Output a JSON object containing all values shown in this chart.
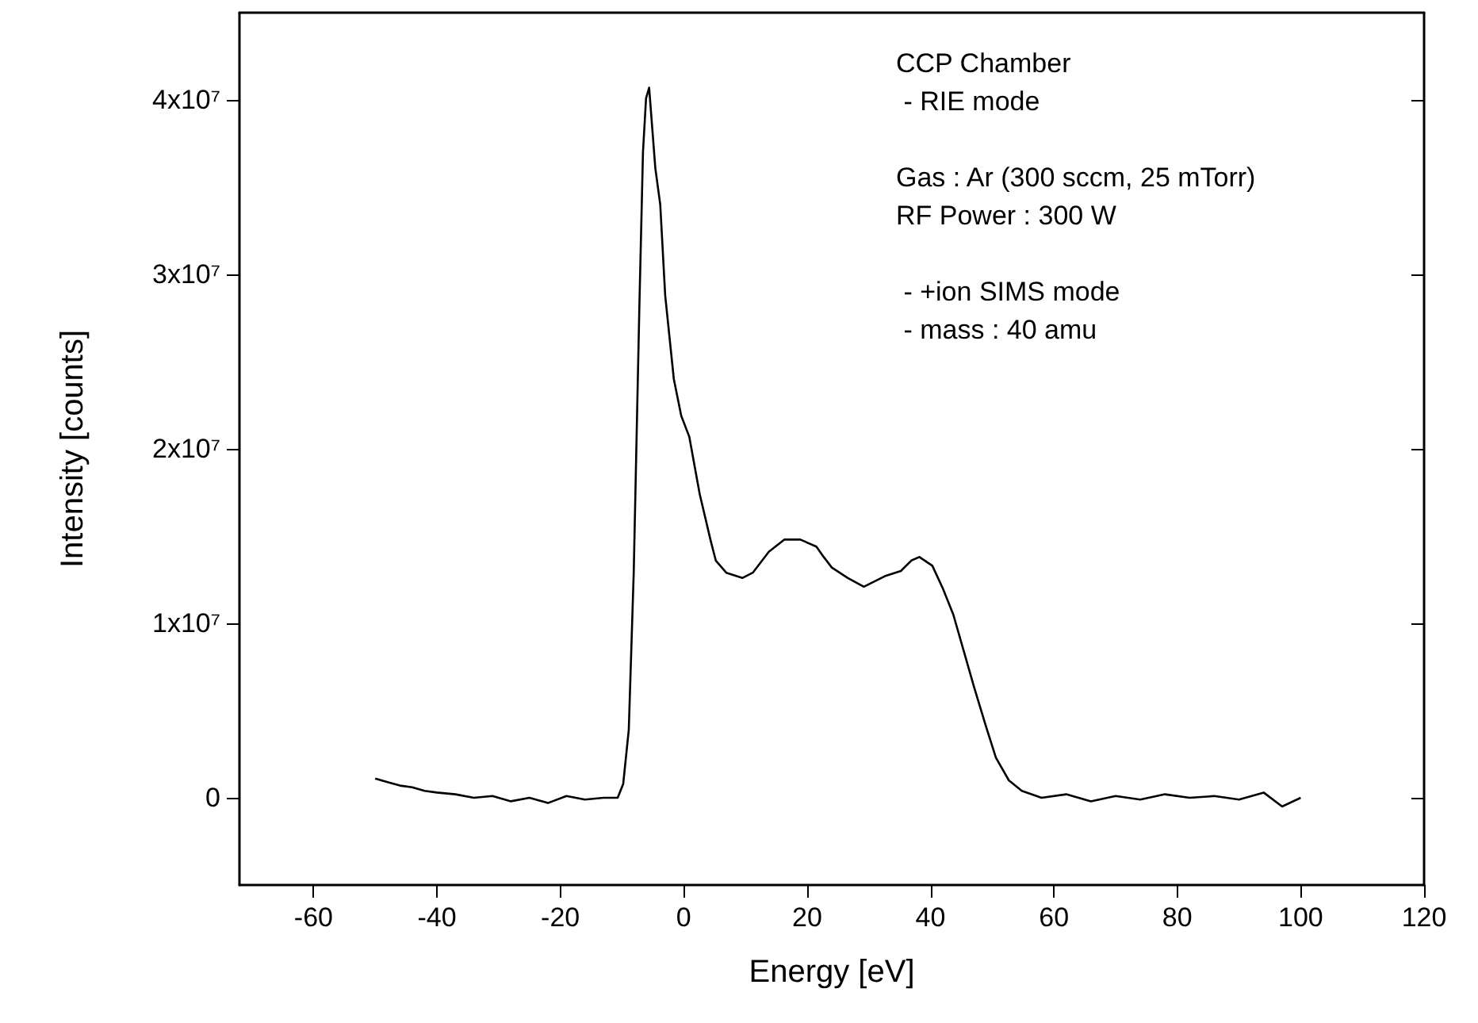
{
  "chart_data": {
    "type": "line",
    "xlabel": "Energy [eV]",
    "ylabel": "Intensity [counts]",
    "xlim": [
      -72,
      120
    ],
    "xticks": [
      -60,
      -40,
      -20,
      0,
      20,
      40,
      60,
      80,
      100,
      120
    ],
    "ylim": [
      -5000000,
      45000000
    ],
    "yticks": [
      {
        "value": 0,
        "label": "0"
      },
      {
        "value": 10000000,
        "label": "1x10⁷"
      },
      {
        "value": 20000000,
        "label": "2x10⁷"
      },
      {
        "value": 30000000,
        "label": "3x10⁷"
      },
      {
        "value": 40000000,
        "label": "4x10⁷"
      }
    ],
    "grid": false,
    "marker": "none",
    "line_style": "solid",
    "annotations": [
      "CCP Chamber\n - RIE mode",
      "Gas : Ar (300 sccm, 25 mTorr)\nRF Power : 300 W",
      " - +ion SIMS mode\n - mass : 40 amu"
    ],
    "series": [
      {
        "color": "#000000",
        "x": [
          -50,
          -48,
          -46,
          -44,
          -42,
          -40,
          -37,
          -34,
          -31,
          -28,
          -25,
          -22,
          -19,
          -16,
          -13,
          -10.7,
          -9.8,
          -8.9,
          -8.1,
          -7.2,
          -6.6,
          -6.1,
          -5.6,
          -4.6,
          -3.8,
          -3.0,
          -1.6,
          -0.4,
          0.9,
          2.6,
          4.4,
          5.2,
          6.9,
          9.5,
          11.2,
          13.8,
          16.3,
          18.0,
          18.9,
          21.5,
          22.7,
          24.0,
          26.6,
          29.2,
          32.6,
          35.2,
          36.9,
          38.2,
          40.3,
          42.0,
          43.7,
          45.4,
          47.1,
          48.9,
          50.6,
          52.7,
          54.8,
          58,
          62,
          66,
          70,
          74,
          78,
          82,
          86,
          90,
          94,
          97,
          100
        ],
        "values": [
          1100000,
          900000,
          700000,
          600000,
          400000,
          300000,
          200000,
          0,
          100000,
          -200000,
          0,
          -300000,
          100000,
          -100000,
          0,
          0,
          800000,
          3900000,
          12900000,
          27900000,
          37000000,
          40100000,
          40700000,
          36100000,
          34000000,
          28800000,
          24000000,
          21900000,
          20700000,
          17400000,
          14700000,
          13600000,
          12900000,
          12600000,
          12900000,
          14100000,
          14800000,
          14800000,
          14800000,
          14400000,
          13800000,
          13200000,
          12600000,
          12100000,
          12700000,
          13000000,
          13600000,
          13800000,
          13300000,
          12000000,
          10500000,
          8400000,
          6300000,
          4200000,
          2300000,
          1000000,
          400000,
          0,
          200000,
          -200000,
          100000,
          -100000,
          200000,
          0,
          100000,
          -100000,
          300000,
          -500000,
          0
        ]
      }
    ]
  }
}
